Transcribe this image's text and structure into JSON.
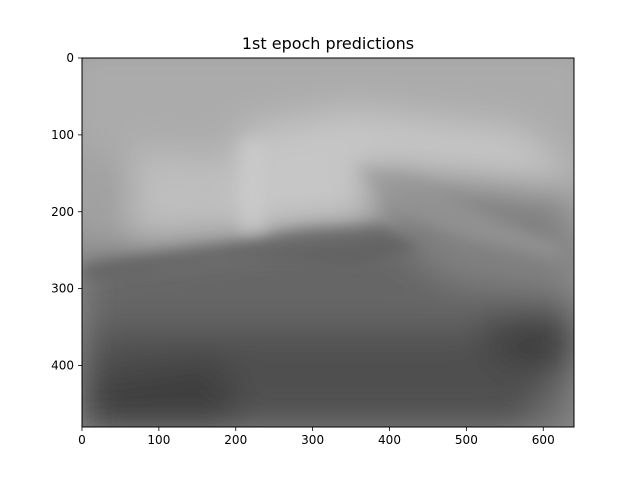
{
  "chart_data": {
    "type": "heatmap",
    "title": "1st epoch predictions",
    "xlabel": "",
    "ylabel": "",
    "colormap": "grayscale",
    "xlim": [
      0,
      640
    ],
    "ylim": [
      480,
      0
    ],
    "xticks": [
      0,
      100,
      200,
      300,
      400,
      500,
      600
    ],
    "yticks": [
      0,
      100,
      200,
      300,
      400
    ],
    "xticklabels": [
      "0",
      "100",
      "200",
      "300",
      "400",
      "500",
      "600"
    ],
    "yticklabels": [
      "0",
      "100",
      "200",
      "300",
      "400"
    ],
    "grid": false
  }
}
